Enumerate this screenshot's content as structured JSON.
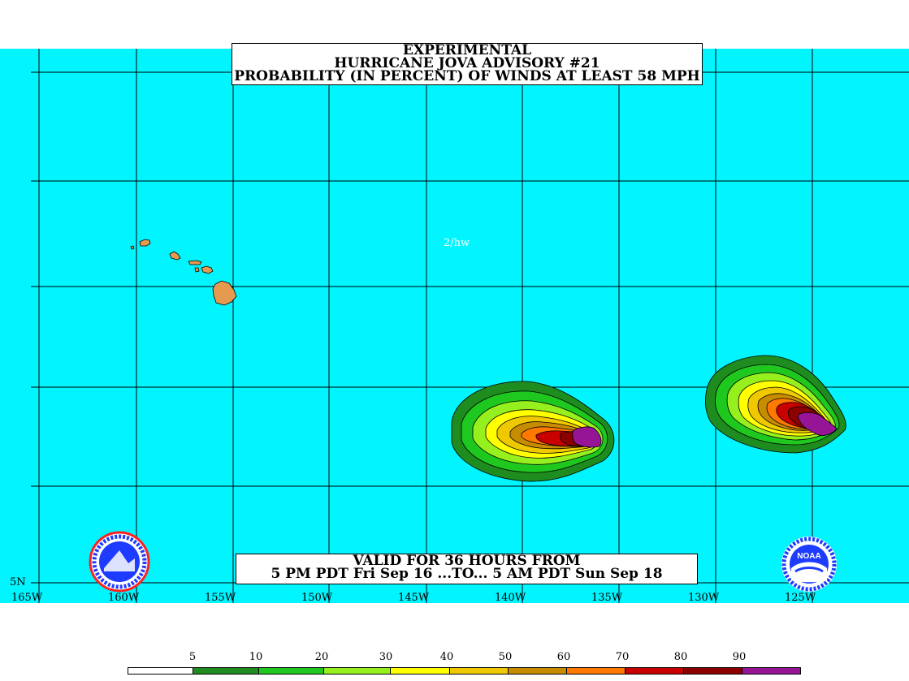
{
  "title": {
    "line1": "EXPERIMENTAL",
    "line2": "HURRICANE JOVA ADVISORY #21",
    "line3": "PROBABILITY (IN PERCENT) OF WINDS AT LEAST 58 MPH"
  },
  "valid": {
    "line1": "VALID FOR 36 HOURS FROM",
    "line2": "5 PM PDT Fri Sep 16 ...TO... 5 AM PDT Sun Sep 18"
  },
  "analyst_tag": "2/hw",
  "lon_labels": [
    "165W",
    "160W",
    "155W",
    "150W",
    "145W",
    "140W",
    "135W",
    "130W",
    "125W"
  ],
  "lat_label": "5N",
  "legend": {
    "ticks": [
      "5",
      "10",
      "20",
      "30",
      "40",
      "50",
      "60",
      "70",
      "80",
      "90"
    ],
    "colors": [
      "#ffffff",
      "#1e8c1e",
      "#1ec81e",
      "#96f01e",
      "#ffff00",
      "#f0c800",
      "#c88c00",
      "#ff7800",
      "#c80000",
      "#8c0000",
      "#961496"
    ]
  },
  "colors": {
    "ocean": "#00f5ff",
    "land": "#e69a50",
    "grid": "#000000"
  },
  "logos": {
    "left": "nws-logo",
    "right": "noaa-logo"
  }
}
